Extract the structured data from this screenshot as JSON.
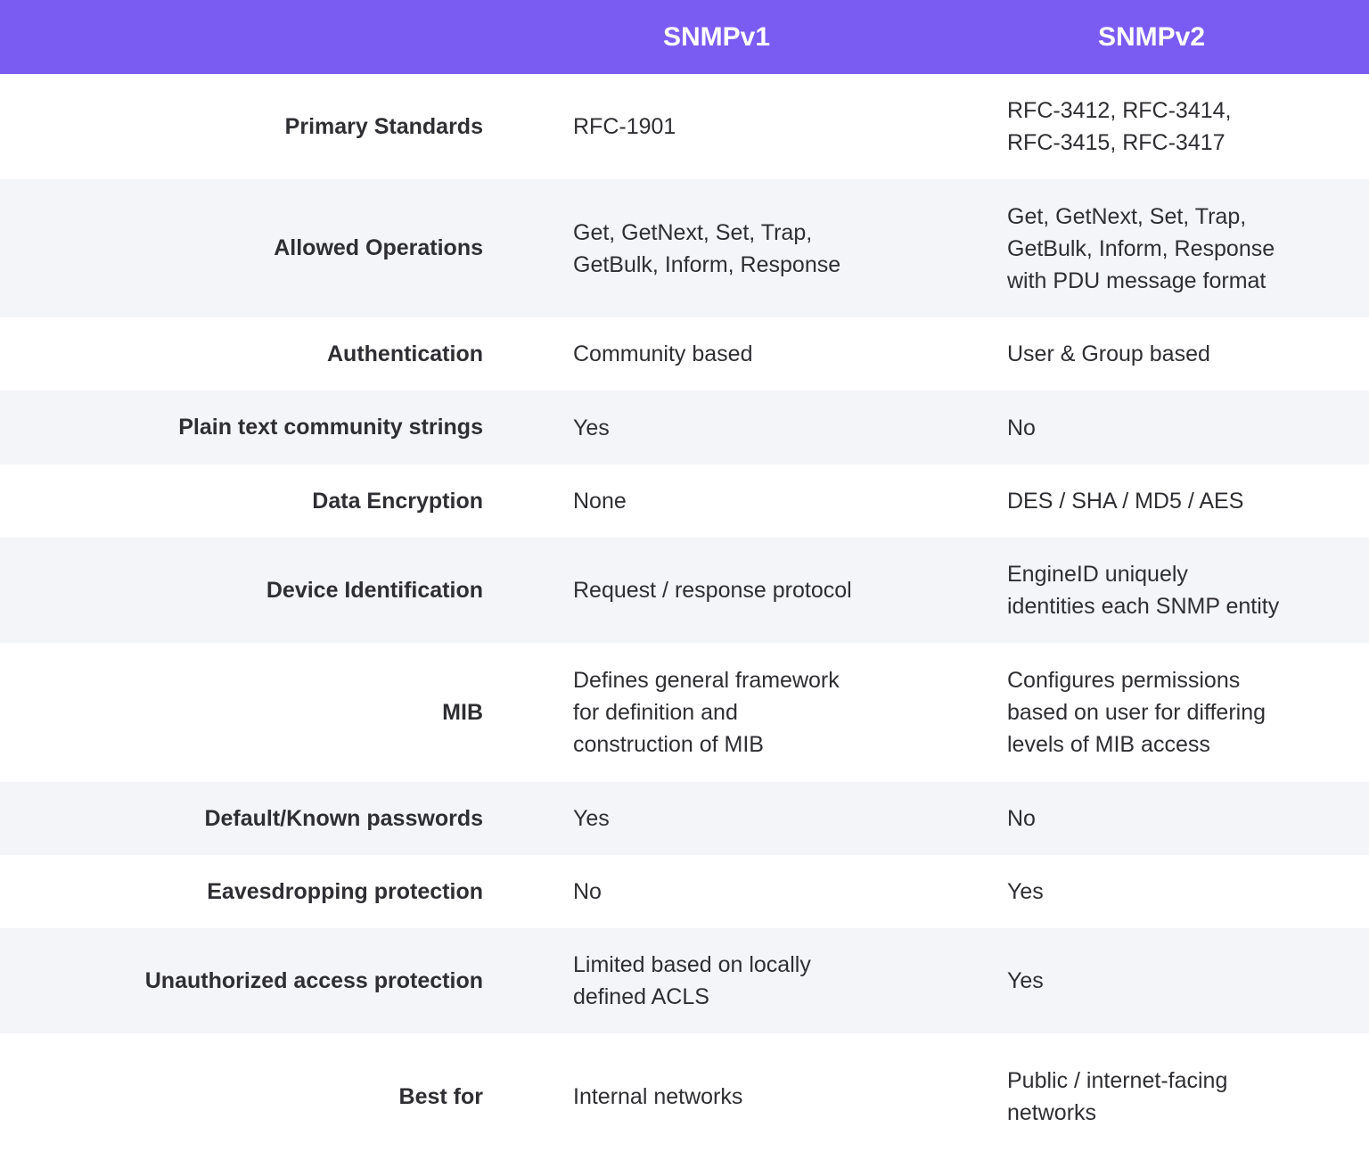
{
  "colors": {
    "header": "#7b5cf2",
    "alt_row": "#f4f5f8",
    "text": "#2f2f33"
  },
  "header": {
    "col1": "SNMPv1",
    "col2": "SNMPv2"
  },
  "rows": [
    {
      "label": "Primary Standards",
      "v1": "RFC-1901",
      "v2": "RFC-3412, RFC-3414,\nRFC-3415, RFC-3417"
    },
    {
      "label": "Allowed Operations",
      "v1": "Get, GetNext, Set, Trap,\nGetBulk, Inform, Response",
      "v2": "Get, GetNext, Set, Trap,\nGetBulk, Inform, Response\nwith PDU message format"
    },
    {
      "label": "Authentication",
      "v1": "Community based",
      "v2": "User & Group based"
    },
    {
      "label": "Plain text community strings",
      "v1": "Yes",
      "v2": "No"
    },
    {
      "label": "Data Encryption",
      "v1": "None",
      "v2": "DES / SHA / MD5 / AES"
    },
    {
      "label": "Device Identification",
      "v1": "Request / response protocol",
      "v2": "EngineID uniquely\nidentities each SNMP entity"
    },
    {
      "label": "MIB",
      "v1": "Defines general framework\nfor definition and\nconstruction of MIB",
      "v2": "Configures permissions\nbased on user for differing\nlevels of MIB access"
    },
    {
      "label": "Default/Known passwords",
      "v1": "Yes",
      "v2": "No"
    },
    {
      "label": "Eavesdropping protection",
      "v1": "No",
      "v2": "Yes"
    },
    {
      "label": "Unauthorized access protection",
      "v1": "Limited based on locally\ndefined ACLS",
      "v2": "Yes"
    },
    {
      "label": "Best for",
      "v1": "Internal networks",
      "v2": "Public / internet-facing\nnetworks"
    }
  ]
}
